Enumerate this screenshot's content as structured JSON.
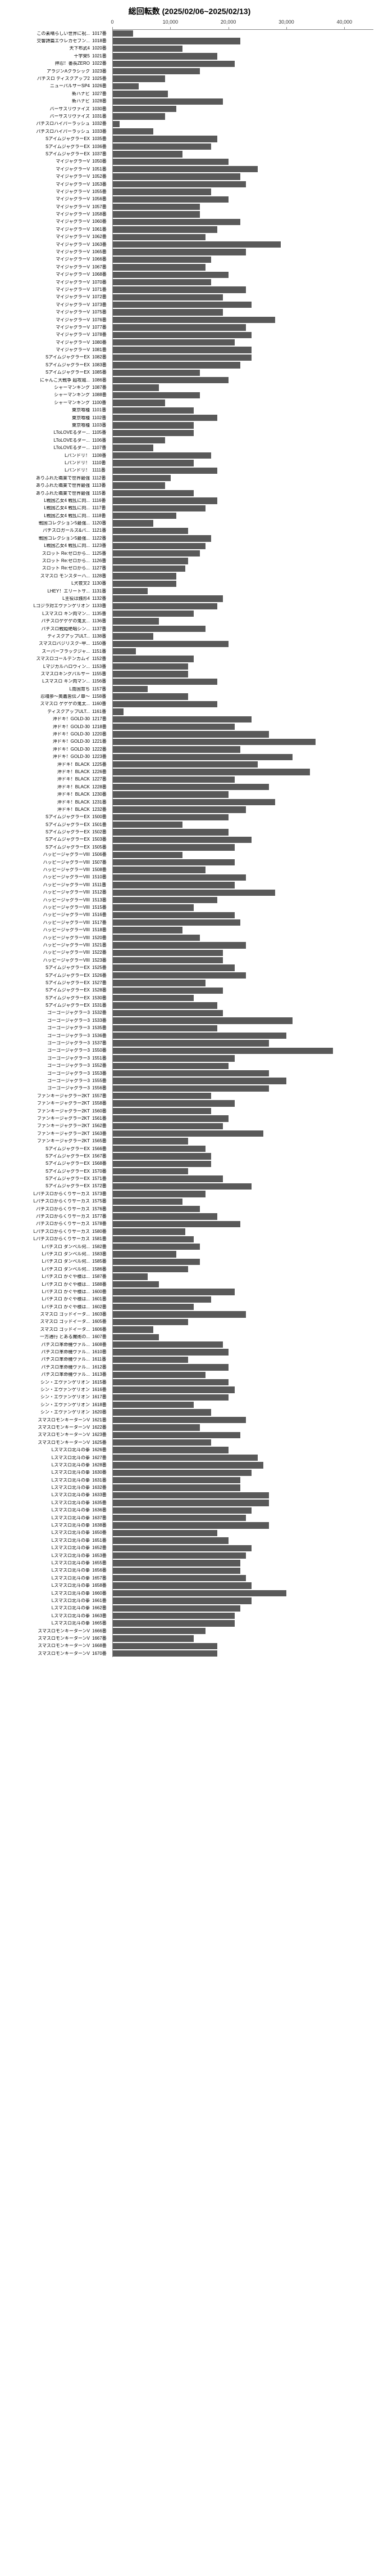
{
  "title": "総回転数 (2025/02/06~2025/02/13)",
  "x_axis": {
    "max": 45000,
    "ticks": [
      0,
      10000,
      20000,
      30000,
      40000
    ],
    "tick_labels": [
      "0",
      "10,000",
      "20,000",
      "30,000",
      "40,000"
    ]
  },
  "bar_color": "#595959",
  "background_color": "#ffffff",
  "rows": [
    {
      "label": "この素晴らしい世界に祝...",
      "id": "1017番",
      "value": 3500
    },
    {
      "label": "交響詩篇エウレカセブン...",
      "id": "1018番",
      "value": 22000
    },
    {
      "label": "天下布武4",
      "id": "1020番",
      "value": 12000
    },
    {
      "label": "十字架5",
      "id": "1021番",
      "value": 18000
    },
    {
      "label": "押忍！番長ZERO",
      "id": "1022番",
      "value": 21000
    },
    {
      "label": "アラジンAクラシック",
      "id": "1023番",
      "value": 15000
    },
    {
      "label": "パチスロ  ディスクアップ2",
      "id": "1025番",
      "value": 9000
    },
    {
      "label": "ニューパルサーSP4",
      "id": "1026番",
      "value": 4500
    },
    {
      "label": "新ハナビ",
      "id": "1027番",
      "value": 9500
    },
    {
      "label": "新ハナビ",
      "id": "1028番",
      "value": 19000
    },
    {
      "label": "バーサスリヴァイズ",
      "id": "1030番",
      "value": 11000
    },
    {
      "label": "バーサスリヴァイズ",
      "id": "1031番",
      "value": 9000
    },
    {
      "label": "パチスロハイパーラッシュ",
      "id": "1032番",
      "value": 1200
    },
    {
      "label": "パチスロハイパーラッシュ",
      "id": "1033番",
      "value": 7000
    },
    {
      "label": "SアイムジャグラーEX",
      "id": "1035番",
      "value": 18000
    },
    {
      "label": "SアイムジャグラーEX",
      "id": "1036番",
      "value": 17000
    },
    {
      "label": "SアイムジャグラーEX",
      "id": "1037番",
      "value": 12000
    },
    {
      "label": "マイジャグラーV",
      "id": "1050番",
      "value": 20000
    },
    {
      "label": "マイジャグラーV",
      "id": "1051番",
      "value": 25000
    },
    {
      "label": "マイジャグラーV",
      "id": "1052番",
      "value": 22000
    },
    {
      "label": "マイジャグラーV",
      "id": "1053番",
      "value": 23000
    },
    {
      "label": "マイジャグラーV",
      "id": "1055番",
      "value": 17000
    },
    {
      "label": "マイジャグラーV",
      "id": "1056番",
      "value": 20000
    },
    {
      "label": "マイジャグラーV",
      "id": "1057番",
      "value": 15000
    },
    {
      "label": "マイジャグラーV",
      "id": "1058番",
      "value": 15000
    },
    {
      "label": "マイジャグラーV",
      "id": "1060番",
      "value": 22000
    },
    {
      "label": "マイジャグラーV",
      "id": "1061番",
      "value": 18000
    },
    {
      "label": "マイジャグラーV",
      "id": "1062番",
      "value": 16000
    },
    {
      "label": "マイジャグラーV",
      "id": "1063番",
      "value": 29000
    },
    {
      "label": "マイジャグラーV",
      "id": "1065番",
      "value": 23000
    },
    {
      "label": "マイジャグラーV",
      "id": "1066番",
      "value": 17000
    },
    {
      "label": "マイジャグラーV",
      "id": "1067番",
      "value": 16000
    },
    {
      "label": "マイジャグラーV",
      "id": "1068番",
      "value": 20000
    },
    {
      "label": "マイジャグラーV",
      "id": "1070番",
      "value": 17000
    },
    {
      "label": "マイジャグラーV",
      "id": "1071番",
      "value": 23000
    },
    {
      "label": "マイジャグラーV",
      "id": "1072番",
      "value": 19000
    },
    {
      "label": "マイジャグラーV",
      "id": "1073番",
      "value": 24000
    },
    {
      "label": "マイジャグラーV",
      "id": "1075番",
      "value": 19000
    },
    {
      "label": "マイジャグラーV",
      "id": "1076番",
      "value": 28000
    },
    {
      "label": "マイジャグラーV",
      "id": "1077番",
      "value": 23000
    },
    {
      "label": "マイジャグラーV",
      "id": "1078番",
      "value": 24000
    },
    {
      "label": "マイジャグラーV",
      "id": "1080番",
      "value": 21000
    },
    {
      "label": "マイジャグラーV",
      "id": "1081番",
      "value": 24000
    },
    {
      "label": "SアイムジャグラーEX",
      "id": "1082番",
      "value": 24000
    },
    {
      "label": "SアイムジャグラーEX",
      "id": "1083番",
      "value": 22000
    },
    {
      "label": "SアイムジャグラーEX",
      "id": "1085番",
      "value": 15000
    },
    {
      "label": "にゃんこ大戦争 超攻城...",
      "id": "1086番",
      "value": 20000
    },
    {
      "label": "シャーマンキング",
      "id": "1087番",
      "value": 8000
    },
    {
      "label": "シャーマンキング",
      "id": "1088番",
      "value": 15000
    },
    {
      "label": "シャーマンキング",
      "id": "1100番",
      "value": 9000
    },
    {
      "label": "東京喰種",
      "id": "1101番",
      "value": 14000
    },
    {
      "label": "東京喰種",
      "id": "1102番",
      "value": 18000
    },
    {
      "label": "東京喰種",
      "id": "1103番",
      "value": 14000
    },
    {
      "label": "LToLOVEるダー...",
      "id": "1105番",
      "value": 14000
    },
    {
      "label": "LToLOVEるダー...",
      "id": "1106番",
      "value": 9000
    },
    {
      "label": "LToLOVEるダー...",
      "id": "1107番",
      "value": 7000
    },
    {
      "label": "Lパンドリ！",
      "id": "1108番",
      "value": 17000
    },
    {
      "label": "Lパンドリ！",
      "id": "1110番",
      "value": 14000
    },
    {
      "label": "Lパンドリ！",
      "id": "1111番",
      "value": 18000
    },
    {
      "label": "ありふれた職業で世界最強",
      "id": "1112番",
      "value": 10000
    },
    {
      "label": "ありふれた職業で世界最強",
      "id": "1113番",
      "value": 9000
    },
    {
      "label": "ありふれた職業で世界最強",
      "id": "1115番",
      "value": 14000
    },
    {
      "label": "L戦国乙女4  戦乱に閃...",
      "id": "1116番",
      "value": 18000
    },
    {
      "label": "L戦国乙女4  戦乱に閃...",
      "id": "1117番",
      "value": 16000
    },
    {
      "label": "L戦国乙女4  戦乱に閃...",
      "id": "1118番",
      "value": 11000
    },
    {
      "label": "戦国コレクション5最強...",
      "id": "1120番",
      "value": 7000
    },
    {
      "label": "パチスロガールズ&パ...",
      "id": "1121番",
      "value": 13000
    },
    {
      "label": "戦国コレクション5最強...",
      "id": "1122番",
      "value": 17000
    },
    {
      "label": "L戦国乙女4  戦乱に閃...",
      "id": "1123番",
      "value": 16000
    },
    {
      "label": "スロット Re:ゼロから...",
      "id": "1125番",
      "value": 15000
    },
    {
      "label": "スロット Re:ゼロから...",
      "id": "1126番",
      "value": 13000
    },
    {
      "label": "スロット Re:ゼロから...",
      "id": "1127番",
      "value": 12500
    },
    {
      "label": "スマスロ モンスターハ...",
      "id": "1128番",
      "value": 11000
    },
    {
      "label": "L犬夜叉2",
      "id": "1130番",
      "value": 11000
    },
    {
      "label": "LHEY！エリートサ...",
      "id": "1131番",
      "value": 6000
    },
    {
      "label": "L主役は銭形4",
      "id": "1132番",
      "value": 19000
    },
    {
      "label": "Lゴジラ対エヴァンゲリオン",
      "id": "1133番",
      "value": 18000
    },
    {
      "label": "Lスマスロ キン肉マン...",
      "id": "1135番",
      "value": 14000
    },
    {
      "label": "パチスロゲゲゲの鬼太...",
      "id": "1136番",
      "value": 8000
    },
    {
      "label": "パチスロ戦姫絶唱シン...",
      "id": "1137番",
      "value": 16000
    },
    {
      "label": "ディスクアップULT...",
      "id": "1138番",
      "value": 7000
    },
    {
      "label": "スマスロバジリスク~甲...",
      "id": "1150番",
      "value": 20000
    },
    {
      "label": "スーパーブラックジャ...",
      "id": "1151番",
      "value": 4000
    },
    {
      "label": "スマスロゴールデンカムイ",
      "id": "1152番",
      "value": 14000
    },
    {
      "label": "Lマジカルハロウィン...",
      "id": "1153番",
      "value": 13000
    },
    {
      "label": "スマスロキングパルサー",
      "id": "1155番",
      "value": 13000
    },
    {
      "label": "Lスマスロ  キン肉マン...",
      "id": "1156番",
      "value": 18000
    },
    {
      "label": "L南国育ち",
      "id": "1157番",
      "value": 6000
    },
    {
      "label": "忍魂参～奥義皆伝ノ章～",
      "id": "1158番",
      "value": 13000
    },
    {
      "label": "スマスロ ゲゲゲの鬼太...",
      "id": "1160番",
      "value": 18000
    },
    {
      "label": "ディスクアップULT...",
      "id": "1161番",
      "value": 1800
    },
    {
      "label": "沖ドキ！GOLD-30",
      "id": "1217番",
      "value": 24000
    },
    {
      "label": "沖ドキ！GOLD-30",
      "id": "1218番",
      "value": 21000
    },
    {
      "label": "沖ドキ！GOLD-30",
      "id": "1220番",
      "value": 27000
    },
    {
      "label": "沖ドキ！GOLD-30",
      "id": "1221番",
      "value": 35000
    },
    {
      "label": "沖ドキ！GOLD-30",
      "id": "1222番",
      "value": 22000
    },
    {
      "label": "沖ドキ！GOLD-30",
      "id": "1223番",
      "value": 31000
    },
    {
      "label": "沖ドキ！BLACK",
      "id": "1225番",
      "value": 25000
    },
    {
      "label": "沖ドキ！BLACK",
      "id": "1226番",
      "value": 34000
    },
    {
      "label": "沖ドキ！BLACK",
      "id": "1227番",
      "value": 21000
    },
    {
      "label": "沖ドキ！BLACK",
      "id": "1228番",
      "value": 27000
    },
    {
      "label": "沖ドキ！BLACK",
      "id": "1230番",
      "value": 20000
    },
    {
      "label": "沖ドキ！BLACK",
      "id": "1231番",
      "value": 28000
    },
    {
      "label": "沖ドキ！BLACK",
      "id": "1232番",
      "value": 23000
    },
    {
      "label": "SアイムジャグラーEX",
      "id": "1500番",
      "value": 20000
    },
    {
      "label": "SアイムジャグラーEX",
      "id": "1501番",
      "value": 12000
    },
    {
      "label": "SアイムジャグラーEX",
      "id": "1502番",
      "value": 20000
    },
    {
      "label": "SアイムジャグラーEX",
      "id": "1503番",
      "value": 24000
    },
    {
      "label": "SアイムジャグラーEX",
      "id": "1505番",
      "value": 21000
    },
    {
      "label": "ハッピージャグラーVIII",
      "id": "1506番",
      "value": 12000
    },
    {
      "label": "ハッピージャグラーVIII",
      "id": "1507番",
      "value": 21000
    },
    {
      "label": "ハッピージャグラーVIII",
      "id": "1508番",
      "value": 16000
    },
    {
      "label": "ハッピージャグラーVIII",
      "id": "1510番",
      "value": 23000
    },
    {
      "label": "ハッピージャグラーVIII",
      "id": "1511番",
      "value": 21000
    },
    {
      "label": "ハッピージャグラーVIII",
      "id": "1512番",
      "value": 28000
    },
    {
      "label": "ハッピージャグラーVIII",
      "id": "1513番",
      "value": 18000
    },
    {
      "label": "ハッピージャグラーVIII",
      "id": "1515番",
      "value": 14000
    },
    {
      "label": "ハッピージャグラーVIII",
      "id": "1516番",
      "value": 21000
    },
    {
      "label": "ハッピージャグラーVIII",
      "id": "1517番",
      "value": 22000
    },
    {
      "label": "ハッピージャグラーVIII",
      "id": "1518番",
      "value": 12000
    },
    {
      "label": "ハッピージャグラーVIII",
      "id": "1520番",
      "value": 15000
    },
    {
      "label": "ハッピージャグラーVIII",
      "id": "1521番",
      "value": 23000
    },
    {
      "label": "ハッピージャグラーVIII",
      "id": "1522番",
      "value": 19000
    },
    {
      "label": "ハッピージャグラーVIII",
      "id": "1523番",
      "value": 19000
    },
    {
      "label": "SアイムジャグラーEX",
      "id": "1525番",
      "value": 21000
    },
    {
      "label": "SアイムジャグラーEX",
      "id": "1526番",
      "value": 23000
    },
    {
      "label": "SアイムジャグラーEX",
      "id": "1527番",
      "value": 16000
    },
    {
      "label": "SアイムジャグラーEX",
      "id": "1528番",
      "value": 19000
    },
    {
      "label": "SアイムジャグラーEX",
      "id": "1530番",
      "value": 14000
    },
    {
      "label": "SアイムジャグラーEX",
      "id": "1531番",
      "value": 18000
    },
    {
      "label": "ゴーゴージャグラー3",
      "id": "1532番",
      "value": 19000
    },
    {
      "label": "ゴーゴージャグラー3",
      "id": "1533番",
      "value": 31000
    },
    {
      "label": "ゴーゴージャグラー3",
      "id": "1535番",
      "value": 18000
    },
    {
      "label": "ゴーゴージャグラー3",
      "id": "1536番",
      "value": 30000
    },
    {
      "label": "ゴーゴージャグラー3",
      "id": "1537番",
      "value": 27000
    },
    {
      "label": "ゴーゴージャグラー3",
      "id": "1550番",
      "value": 38000
    },
    {
      "label": "ゴーゴージャグラー3",
      "id": "1551番",
      "value": 21000
    },
    {
      "label": "ゴーゴージャグラー3",
      "id": "1552番",
      "value": 20000
    },
    {
      "label": "ゴーゴージャグラー3",
      "id": "1553番",
      "value": 27000
    },
    {
      "label": "ゴーゴージャグラー3",
      "id": "1555番",
      "value": 30000
    },
    {
      "label": "ゴーゴージャグラー3",
      "id": "1556番",
      "value": 27000
    },
    {
      "label": "ファンキージャグラー2KT",
      "id": "1557番",
      "value": 17000
    },
    {
      "label": "ファンキージャグラー2KT",
      "id": "1558番",
      "value": 21000
    },
    {
      "label": "ファンキージャグラー2KT",
      "id": "1560番",
      "value": 17000
    },
    {
      "label": "ファンキージャグラー2KT",
      "id": "1561番",
      "value": 20000
    },
    {
      "label": "ファンキージャグラー2KT",
      "id": "1562番",
      "value": 19000
    },
    {
      "label": "ファンキージャグラー2KT",
      "id": "1563番",
      "value": 26000
    },
    {
      "label": "ファンキージャグラー2KT",
      "id": "1565番",
      "value": 13000
    },
    {
      "label": "SアイムジャグラーEX",
      "id": "1566番",
      "value": 16000
    },
    {
      "label": "SアイムジャグラーEX",
      "id": "1567番",
      "value": 17000
    },
    {
      "label": "SアイムジャグラーEX",
      "id": "1568番",
      "value": 17000
    },
    {
      "label": "SアイムジャグラーEX",
      "id": "1570番",
      "value": 13000
    },
    {
      "label": "SアイムジャグラーEX",
      "id": "1571番",
      "value": 19000
    },
    {
      "label": "SアイムジャグラーEX",
      "id": "1572番",
      "value": 24000
    },
    {
      "label": "Lパチスロからくりサーカス",
      "id": "1573番",
      "value": 16000
    },
    {
      "label": "Lパチスロからくりサーカス",
      "id": "1575番",
      "value": 12000
    },
    {
      "label": "パチスロからくりサーカス",
      "id": "1576番",
      "value": 15000
    },
    {
      "label": "パチスロからくりサーカス",
      "id": "1577番",
      "value": 18000
    },
    {
      "label": "パチスロからくりサーカス",
      "id": "1578番",
      "value": 22000
    },
    {
      "label": "Lパチスロからくりサーカス",
      "id": "1580番",
      "value": 12500
    },
    {
      "label": "Lパチスロからくりサーカス",
      "id": "1581番",
      "value": 14000
    },
    {
      "label": "Lパチスロ  ダンベル何...",
      "id": "1582番",
      "value": 15000
    },
    {
      "label": "Lパチスロ  ダンベル何...",
      "id": "1583番",
      "value": 11000
    },
    {
      "label": "Lパチスロ  ダンベル何...",
      "id": "1585番",
      "value": 15000
    },
    {
      "label": "Lパチスロ  ダンベル何...",
      "id": "1586番",
      "value": 13000
    },
    {
      "label": "Lパチスロ かぐや様は...",
      "id": "1587番",
      "value": 6000
    },
    {
      "label": "Lパチスロ かぐや様は...",
      "id": "1588番",
      "value": 8000
    },
    {
      "label": "Lパチスロ かぐや様は...",
      "id": "1600番",
      "value": 21000
    },
    {
      "label": "Lパチスロ かぐや様は...",
      "id": "1601番",
      "value": 17000
    },
    {
      "label": "Lパチスロ かぐや様は...",
      "id": "1602番",
      "value": 14000
    },
    {
      "label": "スマスロ ゴッドイータ...",
      "id": "1603番",
      "value": 23000
    },
    {
      "label": "スマスロ ゴッドイータ...",
      "id": "1605番",
      "value": 13000
    },
    {
      "label": "スマスロ ゴッドイータ...",
      "id": "1606番",
      "value": 7000
    },
    {
      "label": "一方通行 とある魔術の...",
      "id": "1607番",
      "value": 8000
    },
    {
      "label": "パチスロ革命機ヴァル...",
      "id": "1608番",
      "value": 19000
    },
    {
      "label": "パチスロ革命機ヴァル...",
      "id": "1610番",
      "value": 20000
    },
    {
      "label": "パチスロ革命機ヴァル...",
      "id": "1611番",
      "value": 13000
    },
    {
      "label": "パチスロ革命機ヴァル...",
      "id": "1612番",
      "value": 20000
    },
    {
      "label": "パチスロ革命機ヴァル...",
      "id": "1613番",
      "value": 16000
    },
    {
      "label": "シン・エヴァンゲリオン",
      "id": "1615番",
      "value": 20000
    },
    {
      "label": "シン・エヴァンゲリオン",
      "id": "1616番",
      "value": 21000
    },
    {
      "label": "シン・エヴァンゲリオン",
      "id": "1617番",
      "value": 20000
    },
    {
      "label": "シン・エヴァンゲリオン",
      "id": "1618番",
      "value": 14000
    },
    {
      "label": "シン・エヴァンゲリオン",
      "id": "1620番",
      "value": 17000
    },
    {
      "label": "スマスロモンキーターンV",
      "id": "1621番",
      "value": 23000
    },
    {
      "label": "スマスロモンキーターンV",
      "id": "1622番",
      "value": 15000
    },
    {
      "label": "スマスロモンキーターンV",
      "id": "1623番",
      "value": 22000
    },
    {
      "label": "スマスロモンキーターンV",
      "id": "1625番",
      "value": 17000
    },
    {
      "label": "Lスマスロ北斗の拳",
      "id": "1626番",
      "value": 20000
    },
    {
      "label": "Lスマスロ北斗の拳",
      "id": "1627番",
      "value": 25000
    },
    {
      "label": "Lスマスロ北斗の拳",
      "id": "1628番",
      "value": 26000
    },
    {
      "label": "Lスマスロ北斗の拳",
      "id": "1630番",
      "value": 24000
    },
    {
      "label": "Lスマスロ北斗の拳",
      "id": "1631番",
      "value": 22000
    },
    {
      "label": "Lスマスロ北斗の拳",
      "id": "1632番",
      "value": 22000
    },
    {
      "label": "Lスマスロ北斗の拳",
      "id": "1633番",
      "value": 27000
    },
    {
      "label": "Lスマスロ北斗の拳",
      "id": "1635番",
      "value": 27000
    },
    {
      "label": "Lスマスロ北斗の拳",
      "id": "1636番",
      "value": 24000
    },
    {
      "label": "Lスマスロ北斗の拳",
      "id": "1637番",
      "value": 23000
    },
    {
      "label": "Lスマスロ北斗の拳",
      "id": "1638番",
      "value": 27000
    },
    {
      "label": "Lスマスロ北斗の拳",
      "id": "1650番",
      "value": 18000
    },
    {
      "label": "Lスマスロ北斗の拳",
      "id": "1651番",
      "value": 20000
    },
    {
      "label": "Lスマスロ北斗の拳",
      "id": "1652番",
      "value": 24000
    },
    {
      "label": "Lスマスロ北斗の拳",
      "id": "1653番",
      "value": 23000
    },
    {
      "label": "Lスマスロ北斗の拳",
      "id": "1655番",
      "value": 22000
    },
    {
      "label": "Lスマスロ北斗の拳",
      "id": "1656番",
      "value": 22000
    },
    {
      "label": "Lスマスロ北斗の拳",
      "id": "1657番",
      "value": 23000
    },
    {
      "label": "Lスマスロ北斗の拳",
      "id": "1658番",
      "value": 24000
    },
    {
      "label": "Lスマスロ北斗の拳",
      "id": "1660番",
      "value": 30000
    },
    {
      "label": "Lスマスロ北斗の拳",
      "id": "1661番",
      "value": 24000
    },
    {
      "label": "Lスマスロ北斗の拳",
      "id": "1662番",
      "value": 22000
    },
    {
      "label": "Lスマスロ北斗の拳",
      "id": "1663番",
      "value": 21000
    },
    {
      "label": "Lスマスロ北斗の拳",
      "id": "1665番",
      "value": 21000
    },
    {
      "label": "スマスロモンキーターンV",
      "id": "1666番",
      "value": 16000
    },
    {
      "label": "スマスロモンキーターンV",
      "id": "1667番",
      "value": 14000
    },
    {
      "label": "スマスロモンキーターンV",
      "id": "1668番",
      "value": 18000
    },
    {
      "label": "スマスロモンキーターンV",
      "id": "1670番",
      "value": 18000
    }
  ]
}
